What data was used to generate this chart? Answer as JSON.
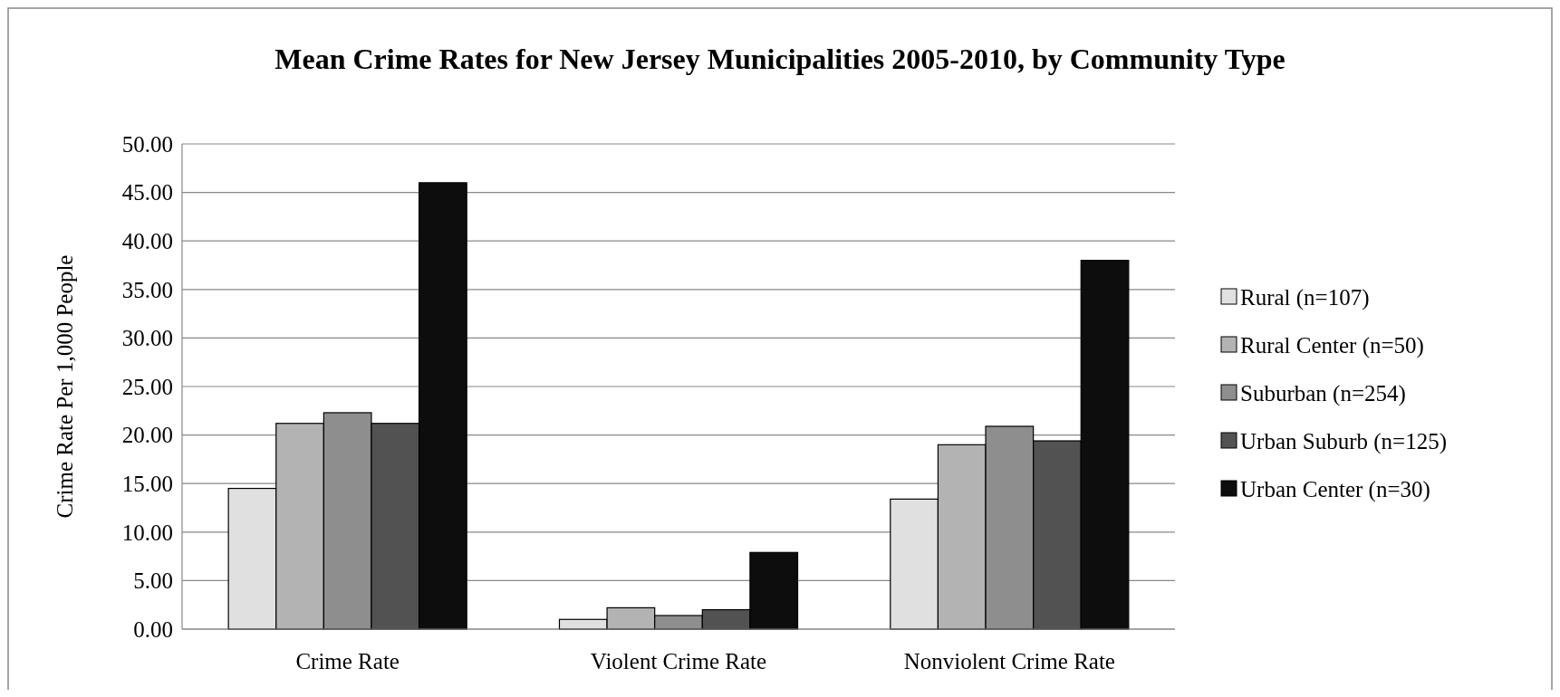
{
  "chart_data": {
    "type": "bar",
    "title": "Mean Crime Rates for New Jersey Municipalities 2005-2010, by Community Type",
    "ylabel": "Crime Rate Per 1,000 People",
    "categories": [
      "Crime Rate",
      "Violent Crime Rate",
      "Nonviolent Crime Rate"
    ],
    "series": [
      {
        "name": "Rural (n=107)",
        "color": "#e0e0e0",
        "values": [
          14.5,
          1.0,
          13.4
        ]
      },
      {
        "name": "Rural Center (n=50)",
        "color": "#b3b3b3",
        "values": [
          21.2,
          2.2,
          19.0
        ]
      },
      {
        "name": "Suburban (n=254)",
        "color": "#8e8e8e",
        "values": [
          22.3,
          1.4,
          20.9
        ]
      },
      {
        "name": "Urban Suburb (n=125)",
        "color": "#525252",
        "values": [
          21.2,
          2.0,
          19.4
        ]
      },
      {
        "name": "Urban Center (n=30)",
        "color": "#0d0d0d",
        "values": [
          46.0,
          7.9,
          38.0
        ]
      }
    ],
    "ylim": [
      0,
      50
    ],
    "yticks": [
      {
        "value": 0,
        "label": "0.00"
      },
      {
        "value": 5,
        "label": "5.00"
      },
      {
        "value": 10,
        "label": "10.00"
      },
      {
        "value": 15,
        "label": "15.00"
      },
      {
        "value": 20,
        "label": "20.00"
      },
      {
        "value": 25,
        "label": "25.00"
      },
      {
        "value": 30,
        "label": "30.00"
      },
      {
        "value": 35,
        "label": "35.00"
      },
      {
        "value": 40,
        "label": "40.00"
      },
      {
        "value": 45,
        "label": "45.00"
      },
      {
        "value": 50,
        "label": "50.00"
      }
    ],
    "grid": "y",
    "legend": "right"
  }
}
